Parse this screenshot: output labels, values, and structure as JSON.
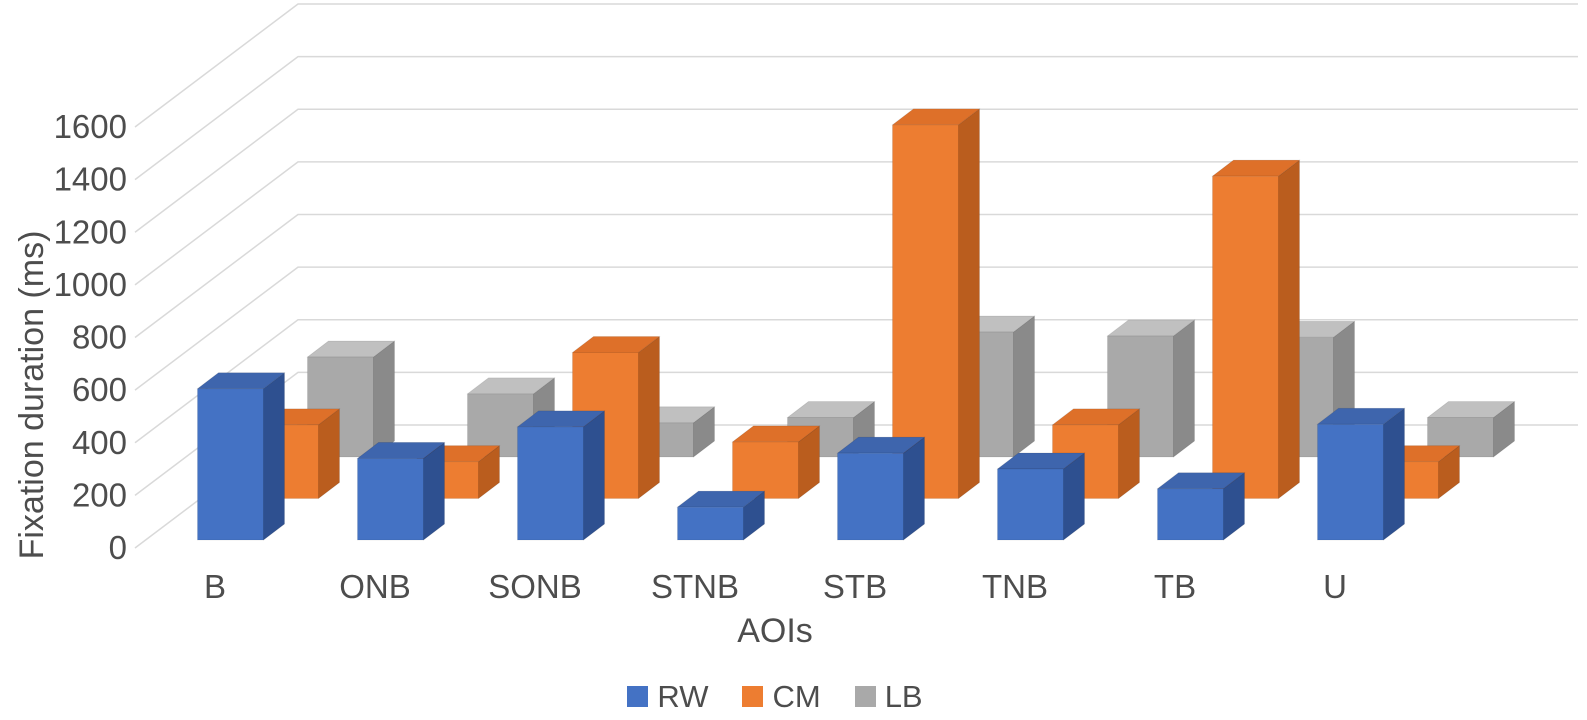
{
  "chart": {
    "y_axis_title": "Fixation duration (ms)",
    "x_axis_title": "AOIs",
    "background": "#ffffff",
    "gridline_color": "#d9d9d9",
    "text_color": "#4d4d4d"
  },
  "chart_data": {
    "type": "bar",
    "variant": "3d-clustered-column",
    "title": "",
    "xlabel": "AOIs",
    "ylabel": "Fixation duration (ms)",
    "categories": [
      "B",
      "ONB",
      "SONB",
      "STNB",
      "STB",
      "TNB",
      "TB",
      "U"
    ],
    "series": [
      {
        "name": "RW",
        "color": "#4472C4",
        "faces": {
          "front": "#4472C4",
          "top": "#3E65AD",
          "side": "#2E5090"
        },
        "values": [
          575,
          310,
          430,
          125,
          330,
          270,
          195,
          440
        ]
      },
      {
        "name": "CM",
        "color": "#ED7D31",
        "faces": {
          "front": "#ED7D31",
          "top": "#DE7029",
          "side": "#BA5D1E"
        },
        "values": [
          280,
          140,
          555,
          215,
          1420,
          280,
          1225,
          140
        ]
      },
      {
        "name": "LB",
        "color": "#A9A9A9",
        "faces": {
          "front": "#A9A9A9",
          "top": "#C0C0C0",
          "side": "#8A8A8A"
        },
        "values": [
          380,
          240,
          130,
          150,
          475,
          460,
          455,
          150
        ]
      }
    ],
    "ylim": [
      0,
      1600
    ],
    "y_ticks": [
      0,
      200,
      400,
      600,
      800,
      1000,
      1200,
      1400,
      1600
    ],
    "grid": true,
    "legend_position": "bottom"
  }
}
